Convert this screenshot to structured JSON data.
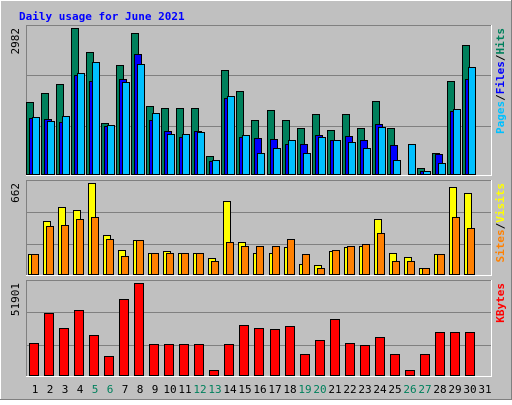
{
  "title": "Daily usage for June 2021",
  "colors": {
    "background": "#c0c0c0",
    "frame_light": "#ffffff",
    "frame_dark": "#808080",
    "grid": "#808080",
    "title": "#0000ff",
    "hits": "#00805c",
    "files": "#0000ff",
    "pages": "#00c0ff",
    "visits": "#ffff00",
    "sites": "#ff8000",
    "kbytes": "#ff0000",
    "weekend_label": "#00805c",
    "weekday_label": "#000000"
  },
  "chart_data": {
    "type": "bar",
    "title": "Daily usage for June 2021",
    "categories": [
      "1",
      "2",
      "3",
      "4",
      "5",
      "6",
      "7",
      "8",
      "9",
      "10",
      "11",
      "12",
      "13",
      "14",
      "15",
      "16",
      "17",
      "18",
      "19",
      "20",
      "21",
      "22",
      "23",
      "24",
      "25",
      "26",
      "27",
      "28",
      "29",
      "30",
      "31"
    ],
    "weekend_days": [
      "5",
      "6",
      "12",
      "13",
      "19",
      "20",
      "26",
      "27"
    ],
    "panels": [
      {
        "name": "hits-files-pages",
        "ymax_label": "2982",
        "ylim": [
          0,
          2982
        ],
        "legend": [
          {
            "label": "Pages",
            "color": "#00c0ff"
          },
          {
            "label": "/",
            "color": "#000000"
          },
          {
            "label": "Files",
            "color": "#0000ff"
          },
          {
            "label": "/",
            "color": "#000000"
          },
          {
            "label": "Hits",
            "color": "#00805c"
          }
        ],
        "series": [
          {
            "name": "Hits",
            "color": "#00805c",
            "values": [
              1490,
              1660,
              1840,
              2982,
              2500,
              1050,
              2240,
              2890,
              1390,
              1360,
              1360,
              1360,
              380,
              2140,
              1710,
              1120,
              1310,
              1120,
              950,
              1230,
              920,
              1230,
              950,
              1510,
              950,
              0,
              150,
              440,
              1900,
              2630,
              0
            ]
          },
          {
            "name": "Files",
            "color": "#0000ff",
            "values": [
              1150,
              1130,
              1080,
              2030,
              1900,
              1000,
              1950,
              2460,
              1120,
              900,
              780,
              900,
              290,
              1570,
              780,
              760,
              730,
              620,
              620,
              810,
              700,
              790,
              710,
              1040,
              610,
              0,
              80,
              420,
              1290,
              1940,
              0
            ]
          },
          {
            "name": "Pages",
            "color": "#00c0ff",
            "values": [
              1180,
              1100,
              1190,
              2060,
              2300,
              1010,
              1890,
              2250,
              1260,
              830,
              840,
              870,
              310,
              1600,
              820,
              440,
              550,
              700,
              440,
              780,
              720,
              670,
              550,
              980,
              300,
              620,
              80,
              240,
              1340,
              2190,
              0
            ]
          }
        ]
      },
      {
        "name": "visits-sites",
        "ymax_label": "662",
        "ylim": [
          0,
          662
        ],
        "legend": [
          {
            "label": "Sites",
            "color": "#ff8000"
          },
          {
            "label": "/",
            "color": "#000000"
          },
          {
            "label": "Visits",
            "color": "#ffff00"
          }
        ],
        "series": [
          {
            "name": "Visits",
            "color": "#ffff00",
            "values": [
              150,
              390,
              490,
              470,
              662,
              290,
              180,
              250,
              160,
              170,
              160,
              160,
              120,
              530,
              240,
              160,
              160,
              200,
              80,
              70,
              170,
              200,
              210,
              400,
              160,
              130,
              50,
              150,
              630,
              590,
              0
            ]
          },
          {
            "name": "Sites",
            "color": "#ff8000",
            "values": [
              150,
              350,
              360,
              400,
              420,
              260,
              140,
              250,
              160,
              160,
              160,
              160,
              100,
              240,
              210,
              210,
              210,
              260,
              150,
              50,
              180,
              210,
              220,
              300,
              100,
              100,
              50,
              150,
              420,
              340,
              0
            ]
          }
        ]
      },
      {
        "name": "kbytes",
        "ymax_label": "51901",
        "ylim": [
          0,
          51901
        ],
        "legend": [
          {
            "label": "KBytes",
            "color": "#ff0000"
          }
        ],
        "series": [
          {
            "name": "KBytes",
            "color": "#ff0000",
            "values": [
              18600,
              35100,
              26700,
              37100,
              23100,
              11200,
              43100,
              51901,
              17900,
              18000,
              18000,
              18000,
              3300,
              18000,
              28600,
              26700,
              26500,
              27900,
              12300,
              20200,
              31800,
              18500,
              17100,
              22000,
              12300,
              3300,
              12300,
              24800,
              24400,
              24400,
              0
            ]
          }
        ]
      }
    ]
  }
}
